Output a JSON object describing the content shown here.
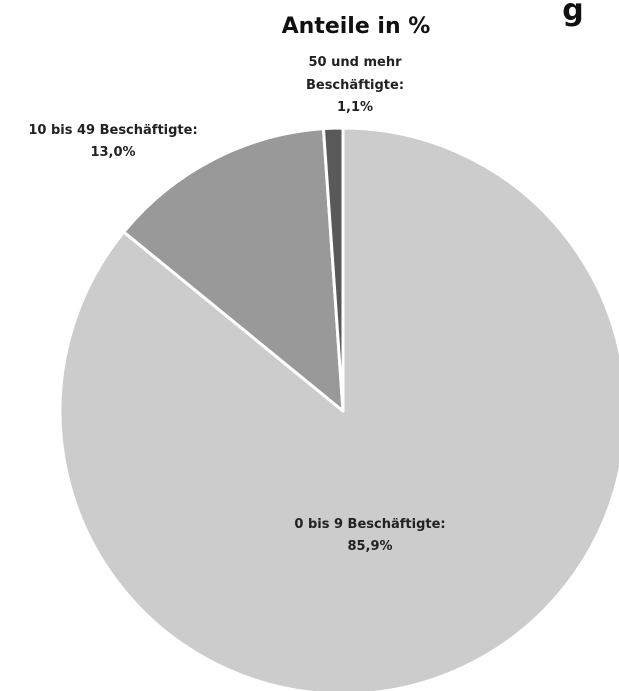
{
  "chart_data": {
    "type": "pie",
    "title": "Anteile in %",
    "title_partial_above": "g",
    "slices": [
      {
        "label": "0 bis 9 Beschäftigte:",
        "value": 85.9,
        "value_label": "85,9%",
        "color": "#cccccc"
      },
      {
        "label": "10 bis 49 Beschäftigte:",
        "value": 13.0,
        "value_label": "13,0%",
        "color": "#999999"
      },
      {
        "label_lines": [
          "50 und mehr",
          "Beschäftigte:"
        ],
        "value": 1.1,
        "value_label": "1,1%",
        "color": "#595959"
      }
    ],
    "start_angle": "12 o'clock",
    "direction": "clockwise",
    "slice_separator_color": "#ffffff"
  }
}
